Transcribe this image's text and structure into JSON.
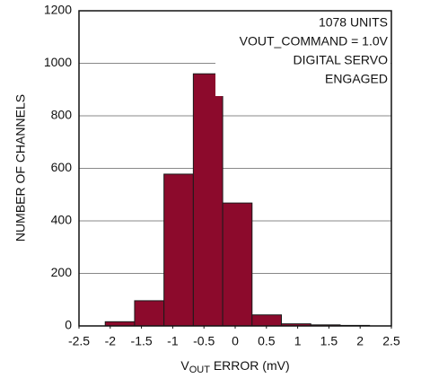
{
  "chart_data": {
    "type": "histogram",
    "bins": [
      -2.08,
      -1.61,
      -1.14,
      -0.67,
      -0.2,
      0.27,
      0.74,
      1.21,
      1.68,
      2.15
    ],
    "values": [
      16,
      96,
      578,
      960,
      468,
      42,
      8,
      4,
      2
    ],
    "color": "#8c0a2c",
    "edgecolor": "#1a1a1a",
    "xlim": [
      -2.5,
      2.5
    ],
    "xticks": [
      -2.5,
      -2,
      -1.5,
      -1,
      -0.5,
      0,
      0.5,
      1,
      1.5,
      2,
      2.5
    ],
    "ylim": [
      0,
      1200
    ],
    "yticks": [
      0,
      200,
      400,
      600,
      800,
      1000,
      1200
    ],
    "grid": true,
    "ylabel": "NUMBER OF CHANNELS",
    "xlabel": {
      "main": "V",
      "sub": "OUT",
      "rest": " ERROR (mV)"
    },
    "annotation": [
      "1078 UNITS",
      "VOUT_COMMAND = 1.0V",
      "DIGITAL SERVO",
      "ENGAGED"
    ]
  }
}
